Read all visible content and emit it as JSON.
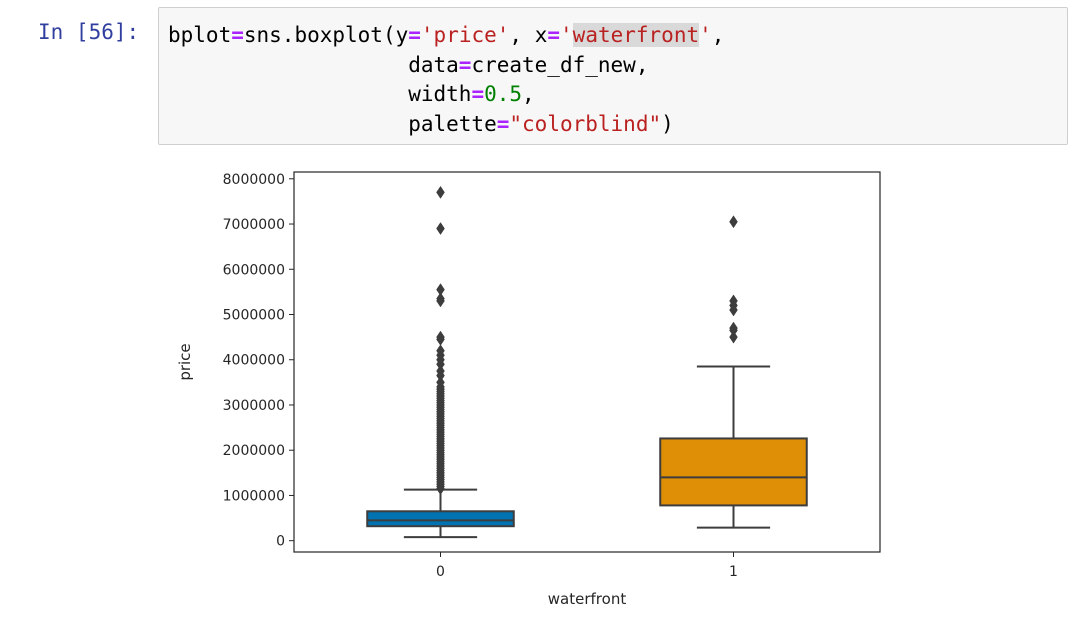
{
  "cell": {
    "prompt": "In [56]:",
    "code_lines": [
      [
        {
          "t": "plain",
          "v": "bplot"
        },
        {
          "t": "op",
          "v": "="
        },
        {
          "t": "plain",
          "v": "sns.boxplot(y"
        },
        {
          "t": "op",
          "v": "="
        },
        {
          "t": "str",
          "v": "'price'"
        },
        {
          "t": "plain",
          "v": ", x"
        },
        {
          "t": "op",
          "v": "="
        },
        {
          "t": "str",
          "v": "'"
        },
        {
          "t": "strhl",
          "v": "waterfront"
        },
        {
          "t": "str",
          "v": "'"
        },
        {
          "t": "plain",
          "v": ","
        }
      ],
      [
        {
          "t": "plain",
          "v": "                   data"
        },
        {
          "t": "op",
          "v": "="
        },
        {
          "t": "plain",
          "v": "create_df_new,"
        }
      ],
      [
        {
          "t": "plain",
          "v": "                   width"
        },
        {
          "t": "op",
          "v": "="
        },
        {
          "t": "num",
          "v": "0.5"
        },
        {
          "t": "plain",
          "v": ","
        }
      ],
      [
        {
          "t": "plain",
          "v": "                   palette"
        },
        {
          "t": "op",
          "v": "="
        },
        {
          "t": "str",
          "v": "\"colorblind\""
        },
        {
          "t": "plain",
          "v": ")"
        }
      ]
    ]
  },
  "chart_data": {
    "type": "boxplot",
    "xlabel": "waterfront",
    "ylabel": "price",
    "ylim": [
      -250000,
      8150000
    ],
    "yticks": [
      0,
      1000000,
      2000000,
      3000000,
      4000000,
      5000000,
      6000000,
      7000000,
      8000000
    ],
    "categories": [
      "0",
      "1"
    ],
    "boxes": [
      {
        "category": "0",
        "color": "#0173b2",
        "whislo": 80000,
        "q1": 320000,
        "med": 450000,
        "q3": 650000,
        "whishi": 1130000,
        "fliers": [
          1150000,
          1200000,
          1250000,
          1300000,
          1350000,
          1400000,
          1450000,
          1500000,
          1550000,
          1600000,
          1650000,
          1700000,
          1750000,
          1800000,
          1850000,
          1900000,
          1950000,
          2000000,
          2050000,
          2100000,
          2150000,
          2200000,
          2250000,
          2300000,
          2350000,
          2400000,
          2450000,
          2500000,
          2550000,
          2600000,
          2650000,
          2700000,
          2750000,
          2800000,
          2850000,
          2900000,
          2950000,
          3000000,
          3050000,
          3100000,
          3150000,
          3200000,
          3250000,
          3300000,
          3350000,
          3400000,
          3500000,
          3650000,
          3750000,
          3900000,
          4000000,
          4100000,
          4200000,
          4450000,
          4500000,
          5300000,
          5350000,
          5550000,
          6900000,
          7700000
        ]
      },
      {
        "category": "1",
        "color": "#de8f05",
        "whislo": 290000,
        "q1": 780000,
        "med": 1400000,
        "q3": 2260000,
        "whishi": 3850000,
        "fliers": [
          4500000,
          4650000,
          4700000,
          5100000,
          5200000,
          5300000,
          7050000
        ]
      }
    ]
  }
}
